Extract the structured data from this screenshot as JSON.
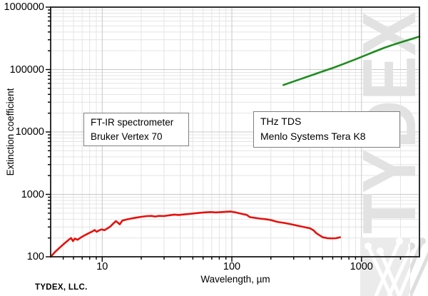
{
  "branding": {
    "company_label": "TYDEX, LLC.",
    "watermark_text": "TYDEX",
    "watermark_logo": "interlocked-w-monogram"
  },
  "chart_data": {
    "type": "line",
    "title": "",
    "xlabel": "Wavelength, µm",
    "ylabel": "Extinction coefficient",
    "x_scale": "log",
    "y_scale": "log",
    "xlim": [
      4,
      2800
    ],
    "ylim": [
      100,
      1000000
    ],
    "x_ticks": [
      10,
      100,
      1000
    ],
    "y_ticks": [
      100,
      1000,
      10000,
      100000,
      1000000
    ],
    "grid": "major-and-minor",
    "legend_position": "none",
    "annotations": [
      {
        "lines": [
          "FT-IR spectrometer",
          "Bruker Vertex 70"
        ]
      },
      {
        "lines": [
          "THz TDS",
          "Menlo Systems Tera K8"
        ]
      }
    ],
    "series": [
      {
        "name": "FT-IR spectrometer Bruker Vertex 70",
        "color": "#e8100c",
        "points": [
          [
            4,
            100
          ],
          [
            4.3,
            118
          ],
          [
            4.7,
            140
          ],
          [
            5.1,
            163
          ],
          [
            5.5,
            186
          ],
          [
            5.75,
            200
          ],
          [
            5.95,
            178
          ],
          [
            6.15,
            196
          ],
          [
            6.45,
            187
          ],
          [
            6.8,
            202
          ],
          [
            7.2,
            217
          ],
          [
            7.6,
            230
          ],
          [
            8.0,
            243
          ],
          [
            8.4,
            255
          ],
          [
            8.75,
            268
          ],
          [
            9.05,
            251
          ],
          [
            9.45,
            264
          ],
          [
            9.9,
            275
          ],
          [
            10.4,
            267
          ],
          [
            10.9,
            283
          ],
          [
            11.5,
            303
          ],
          [
            12.1,
            337
          ],
          [
            12.75,
            373
          ],
          [
            13.25,
            350
          ],
          [
            13.65,
            331
          ],
          [
            14.3,
            380
          ],
          [
            15.3,
            394
          ],
          [
            16.5,
            408
          ],
          [
            18,
            422
          ],
          [
            20,
            436
          ],
          [
            22,
            448
          ],
          [
            24,
            452
          ],
          [
            25.5,
            441
          ],
          [
            27.5,
            452
          ],
          [
            30,
            449
          ],
          [
            33,
            462
          ],
          [
            36,
            474
          ],
          [
            39,
            467
          ],
          [
            43,
            478
          ],
          [
            47,
            486
          ],
          [
            52,
            496
          ],
          [
            57,
            507
          ],
          [
            63,
            515
          ],
          [
            69,
            521
          ],
          [
            75,
            514
          ],
          [
            82,
            519
          ],
          [
            90,
            526
          ],
          [
            98,
            530
          ],
          [
            106,
            517
          ],
          [
            114,
            498
          ],
          [
            123,
            480
          ],
          [
            130,
            470
          ],
          [
            138,
            432
          ],
          [
            150,
            421
          ],
          [
            165,
            409
          ],
          [
            182,
            400
          ],
          [
            200,
            388
          ],
          [
            225,
            362
          ],
          [
            255,
            348
          ],
          [
            290,
            330
          ],
          [
            330,
            311
          ],
          [
            375,
            294
          ],
          [
            403,
            285
          ],
          [
            428,
            264
          ],
          [
            447,
            240
          ],
          [
            465,
            227
          ],
          [
            503,
            205
          ],
          [
            545,
            199
          ],
          [
            590,
            197
          ],
          [
            635,
            198
          ],
          [
            683,
            205
          ]
        ]
      },
      {
        "name": "THz TDS Menlo Systems Tera K8",
        "color": "#1e8c1e",
        "points": [
          [
            250,
            56500
          ],
          [
            300,
            64500
          ],
          [
            360,
            73500
          ],
          [
            430,
            83500
          ],
          [
            515,
            95000
          ],
          [
            615,
            108000
          ],
          [
            735,
            124000
          ],
          [
            880,
            143500
          ],
          [
            1050,
            166000
          ],
          [
            1255,
            193000
          ],
          [
            1500,
            223000
          ],
          [
            1790,
            253000
          ],
          [
            2140,
            284000
          ],
          [
            2480,
            312000
          ],
          [
            2800,
            338000
          ]
        ]
      }
    ],
    "colors": {
      "major_grid": "#c8c8c8",
      "minor_grid": "#e4e4e4",
      "frame": "#1a1a1a",
      "watermark": "#e2e2e2",
      "logo_background": "#ebebeb"
    }
  }
}
